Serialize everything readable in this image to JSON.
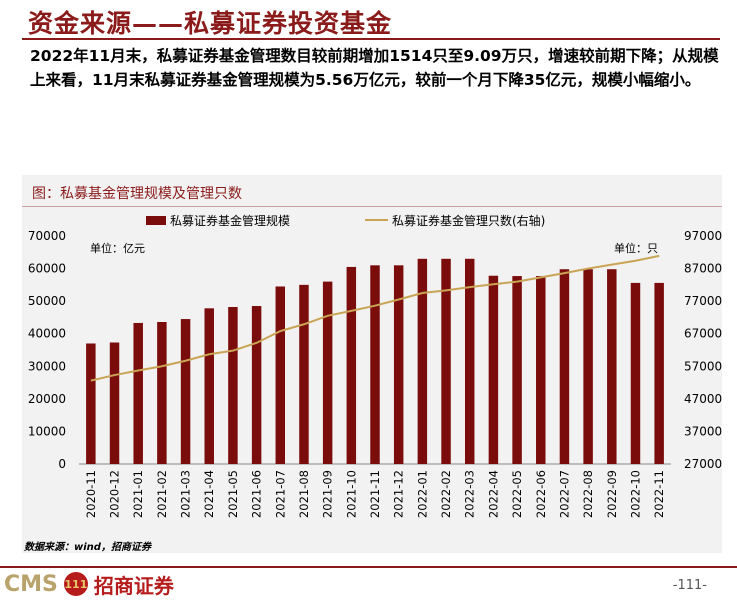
{
  "page": {
    "title": "资金来源——私募证券投资基金",
    "summary": "2022年11月末，私募证券基金管理数目较前期增加1514只至9.09万只，增速较前期下降；从规模上来看，11月末私募证券基金管理规模为5.56万亿元，较前一个月下降35亿元，规模小幅缩小。",
    "source": "数据来源：wind，招商证券",
    "page_number": "-111-",
    "logo": {
      "latin": "CMS",
      "badge": "111",
      "cn": "招商证券"
    }
  },
  "chart_data": {
    "type": "bar",
    "title": "图：私募基金管理规模及管理只数",
    "categories": [
      "2020-11",
      "2020-12",
      "2021-01",
      "2021-02",
      "2021-03",
      "2021-04",
      "2021-05",
      "2021-06",
      "2021-07",
      "2021-08",
      "2021-09",
      "2021-10",
      "2021-11",
      "2021-12",
      "2022-01",
      "2022-02",
      "2022-03",
      "2022-04",
      "2022-05",
      "2022-06",
      "2022-07",
      "2022-08",
      "2022-09",
      "2022-10",
      "2022-11"
    ],
    "series": [
      {
        "name": "私募证券基金管理规模",
        "type": "bar",
        "axis": "left",
        "color": "#7b0c0c",
        "values": [
          37000,
          37300,
          43300,
          43600,
          44500,
          47800,
          48200,
          48500,
          54500,
          55000,
          56000,
          60500,
          61000,
          61000,
          63000,
          63000,
          63000,
          57800,
          57700,
          57700,
          59800,
          59800,
          59800,
          55600,
          55600
        ]
      },
      {
        "name": "私募证券基金管理只数(右轴)",
        "type": "line",
        "axis": "right",
        "color": "#c9a454",
        "values": [
          52600,
          54300,
          55700,
          57000,
          58700,
          60700,
          61800,
          64200,
          67800,
          69900,
          72500,
          74000,
          75600,
          77500,
          79500,
          80300,
          81300,
          82200,
          83000,
          84300,
          85600,
          87000,
          88200,
          89400,
          90900
        ]
      }
    ],
    "left_axis": {
      "unit": "单位：亿元",
      "ylim": [
        0,
        70000
      ],
      "ticks": [
        0,
        10000,
        20000,
        30000,
        40000,
        50000,
        60000,
        70000
      ]
    },
    "right_axis": {
      "unit": "单位：只",
      "ylim": [
        27000,
        97000
      ],
      "ticks": [
        27000,
        37000,
        47000,
        57000,
        67000,
        77000,
        87000,
        97000
      ]
    },
    "legend": "top",
    "grid": false
  }
}
